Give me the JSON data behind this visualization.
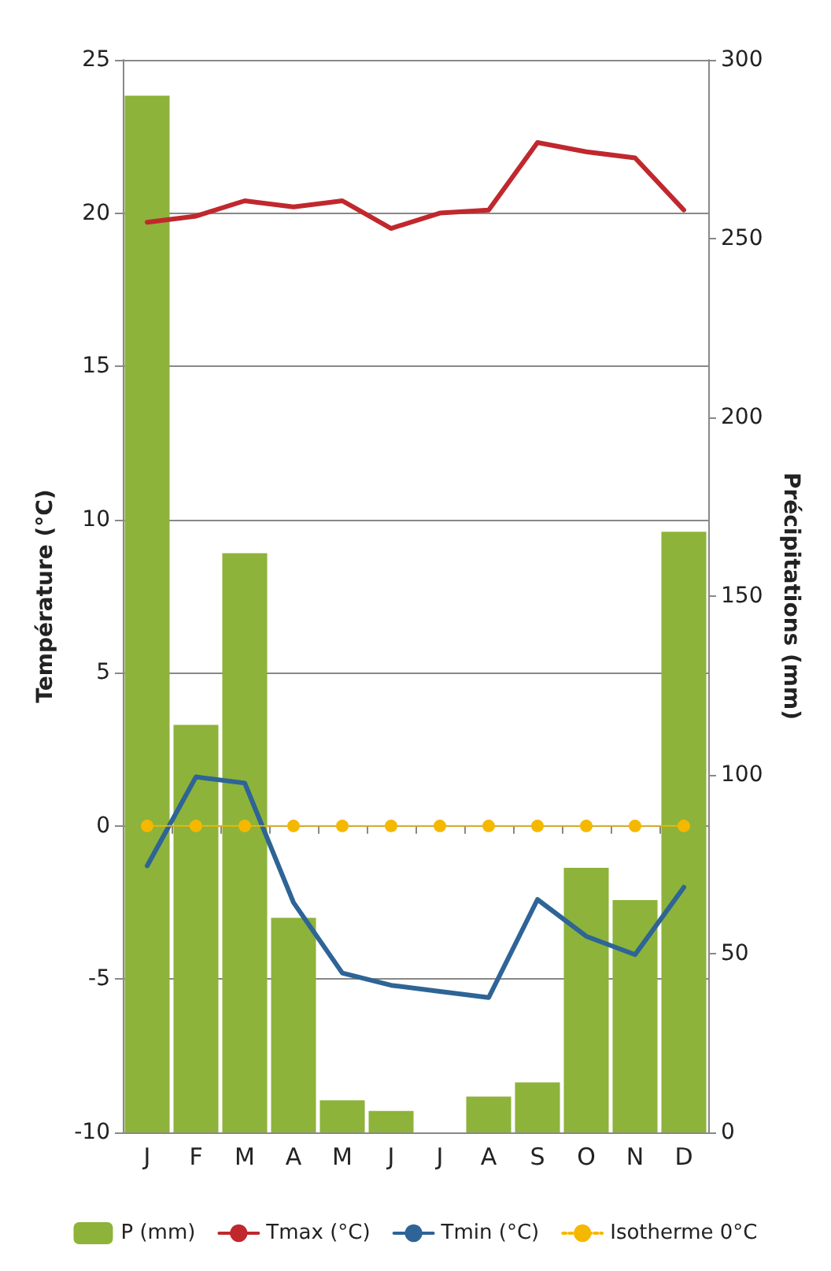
{
  "chart_data": {
    "type": "bar",
    "ylabel": "Température (°C)",
    "y2label": "Précipitations (mm)",
    "categories": [
      "J",
      "F",
      "M",
      "A",
      "M",
      "J",
      "J",
      "A",
      "S",
      "O",
      "N",
      "D"
    ],
    "series": [
      {
        "name": "P (mm)",
        "axis": "y2",
        "color": "#8db33a",
        "values": [
          290,
          114,
          162,
          60,
          9,
          6,
          0,
          10,
          14,
          74,
          65,
          168
        ]
      },
      {
        "name": "Tmax (°C)",
        "type": "line",
        "color": "#c0282d",
        "marker": "none",
        "line_style": "solid",
        "values": [
          19.7,
          19.9,
          20.4,
          20.2,
          20.4,
          19.5,
          20.0,
          20.1,
          22.3,
          22.0,
          21.8,
          20.1
        ]
      },
      {
        "name": "Tmin (°C)",
        "type": "line",
        "color": "#2e6496",
        "marker": "none",
        "line_style": "solid",
        "values": [
          -1.3,
          1.6,
          1.4,
          -2.5,
          -4.8,
          -5.2,
          -5.4,
          -5.6,
          -2.4,
          -3.6,
          -4.2,
          -2.0
        ]
      },
      {
        "name": "Isotherme 0°C",
        "type": "line",
        "color": "#f5b800",
        "marker": "circle",
        "line_style": "dotted",
        "values": [
          0,
          0,
          0,
          0,
          0,
          0,
          0,
          0,
          0,
          0,
          0,
          0
        ]
      }
    ],
    "ylim": [
      -10,
      25
    ],
    "yticks": [
      -10,
      -5,
      0,
      5,
      10,
      15,
      20,
      25
    ],
    "y2lim": [
      0,
      300
    ],
    "y2ticks": [
      0,
      50,
      100,
      150,
      200,
      250,
      300
    ],
    "grid": "y",
    "legend": "bottom"
  }
}
